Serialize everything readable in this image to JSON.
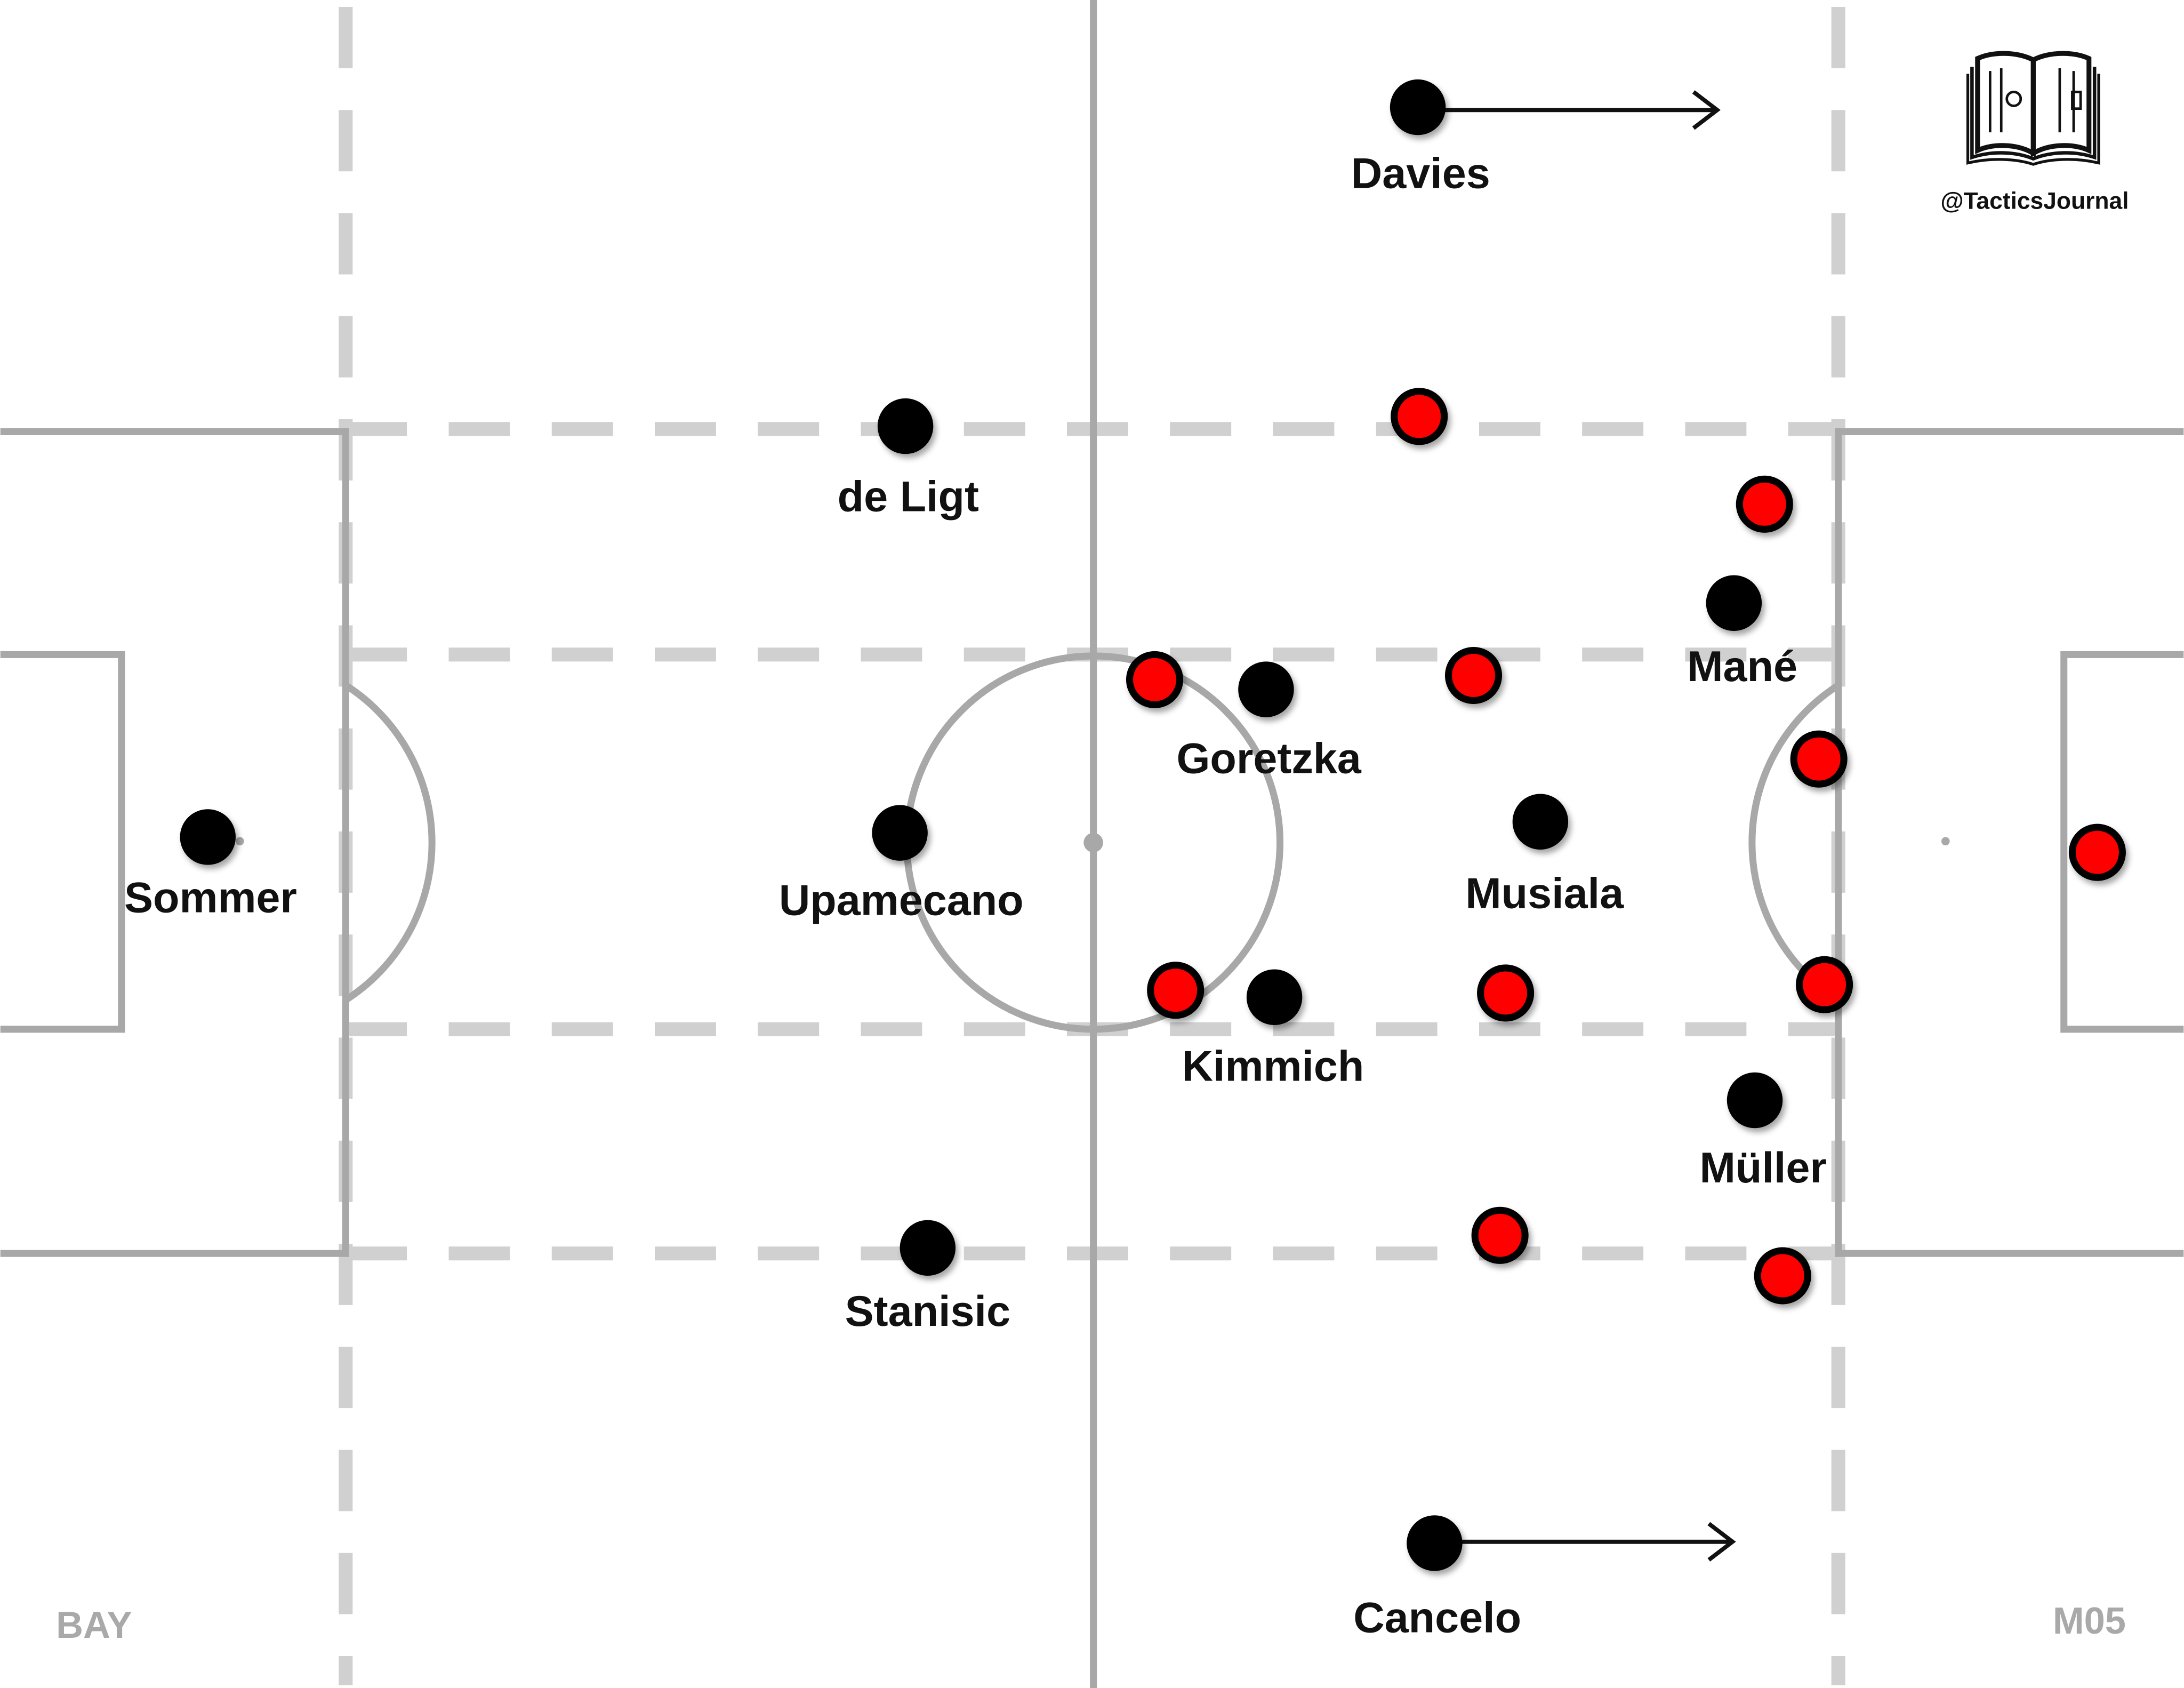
{
  "watermark": {
    "handle": "@TacticsJournal",
    "icon": "open-book-icon"
  },
  "teams": {
    "home": "BAY",
    "away": "M05"
  },
  "colors": {
    "home_player": "#000000",
    "away_player": "#ff0000",
    "pitch_line": "#a8a8a8",
    "zone_line": "#d0d0d0",
    "team_label": "#a9a9a9"
  },
  "home_players": [
    {
      "id": "sommer",
      "name": "Sommer"
    },
    {
      "id": "de-ligt",
      "name": "de Ligt"
    },
    {
      "id": "upamecano",
      "name": "Upamecano"
    },
    {
      "id": "stanisic",
      "name": "Stanisic"
    },
    {
      "id": "davies",
      "name": "Davies"
    },
    {
      "id": "goretzka",
      "name": "Goretzka"
    },
    {
      "id": "kimmich",
      "name": "Kimmich"
    },
    {
      "id": "musiala",
      "name": "Musiala"
    },
    {
      "id": "mane",
      "name": "Mané"
    },
    {
      "id": "muller",
      "name": "Müller"
    },
    {
      "id": "cancelo",
      "name": "Cancelo"
    }
  ],
  "movement_arrows": [
    {
      "player": "Davies",
      "direction": "right"
    },
    {
      "player": "Cancelo",
      "direction": "right"
    }
  ],
  "away_players_count": 11
}
